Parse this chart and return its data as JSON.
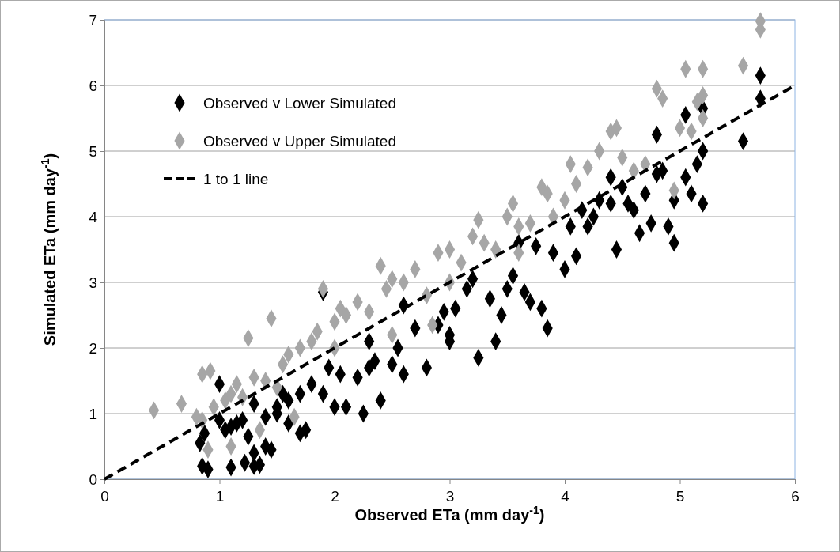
{
  "chart_data": {
    "type": "scatter",
    "xlabel": "Observed ETa (mm day$^{-1}$)",
    "ylabel": "Simulated ETa (mm day$^{-1}$)",
    "xlim": [
      0,
      6
    ],
    "ylim": [
      0,
      7
    ],
    "xticks": [
      0,
      1,
      2,
      3,
      4,
      5,
      6
    ],
    "yticks": [
      0,
      1,
      2,
      3,
      4,
      5,
      6,
      7
    ],
    "grid": "y",
    "legend": "top left",
    "marker": "diamond",
    "series": [
      {
        "name": "Observed v Lower Simulated",
        "color": "#000000",
        "x": [
          0.85,
          0.9,
          1.1,
          1.22,
          1.3,
          1.35,
          0.83,
          0.87,
          1.0,
          1.05,
          1.1,
          1.2,
          1.25,
          1.3,
          1.4,
          1.45,
          1.4,
          1.5,
          1.55,
          1.6,
          1.6,
          1.7,
          1.75,
          1.7,
          1.8,
          1.9,
          1.9,
          2.0,
          2.05,
          2.1,
          2.2,
          2.25,
          2.3,
          2.35,
          2.4,
          2.5,
          2.55,
          2.6,
          2.7,
          2.8,
          2.9,
          2.95,
          3.0,
          3.0,
          3.05,
          3.15,
          3.2,
          3.25,
          3.35,
          3.4,
          3.45,
          3.5,
          3.55,
          3.6,
          3.65,
          3.7,
          3.75,
          3.8,
          3.85,
          3.9,
          4.0,
          4.05,
          4.1,
          4.15,
          4.2,
          4.25,
          4.3,
          4.4,
          4.45,
          4.5,
          4.55,
          4.6,
          4.65,
          4.7,
          4.75,
          4.8,
          4.85,
          4.9,
          4.95,
          4.95,
          5.05,
          5.1,
          5.15,
          5.2,
          5.2,
          5.2,
          5.05,
          5.55,
          5.7,
          5.7,
          4.8,
          4.4,
          2.6,
          2.3,
          1.95,
          1.5,
          1.3,
          1.15,
          1.0
        ],
        "values": [
          0.2,
          0.15,
          0.18,
          0.25,
          0.2,
          0.22,
          0.55,
          0.7,
          1.45,
          0.75,
          0.8,
          0.9,
          0.65,
          0.4,
          0.5,
          0.45,
          0.95,
          1.1,
          1.3,
          1.2,
          0.85,
          0.7,
          0.75,
          1.3,
          1.45,
          2.85,
          1.3,
          1.1,
          1.6,
          1.1,
          1.55,
          1.0,
          1.7,
          1.8,
          1.2,
          1.75,
          2.0,
          1.6,
          2.3,
          1.7,
          2.35,
          2.55,
          2.1,
          2.2,
          2.6,
          2.9,
          3.05,
          1.85,
          2.75,
          2.1,
          2.5,
          2.9,
          3.1,
          3.6,
          2.85,
          2.7,
          3.55,
          2.6,
          2.3,
          3.45,
          3.2,
          3.85,
          3.4,
          4.1,
          3.85,
          4.0,
          4.25,
          4.6,
          3.5,
          4.45,
          4.2,
          4.1,
          3.75,
          4.35,
          3.9,
          5.25,
          4.7,
          3.85,
          3.6,
          4.25,
          4.6,
          4.35,
          4.8,
          5.0,
          4.2,
          5.65,
          5.55,
          5.15,
          6.15,
          5.8,
          4.65,
          4.2,
          2.65,
          2.1,
          1.7,
          1.0,
          1.15,
          0.85,
          0.9
        ]
      },
      {
        "name": "Observed v Upper Simulated",
        "color": "#a6a6a6",
        "x": [
          0.43,
          0.67,
          0.8,
          0.85,
          0.85,
          0.92,
          0.9,
          0.95,
          1.05,
          1.1,
          1.1,
          1.15,
          1.25,
          1.3,
          1.45,
          1.4,
          1.55,
          1.6,
          1.7,
          1.8,
          1.85,
          1.9,
          2.0,
          2.05,
          2.1,
          2.2,
          2.3,
          2.4,
          2.45,
          2.5,
          2.6,
          2.7,
          2.8,
          2.9,
          3.0,
          3.0,
          3.1,
          3.2,
          3.25,
          3.3,
          3.4,
          3.5,
          3.55,
          3.6,
          3.7,
          3.8,
          3.85,
          3.9,
          4.0,
          4.05,
          4.1,
          4.2,
          4.3,
          4.4,
          4.45,
          4.5,
          4.6,
          4.7,
          4.8,
          4.85,
          4.95,
          5.0,
          5.05,
          5.1,
          5.15,
          5.2,
          5.2,
          5.2,
          5.55,
          5.7,
          5.7,
          2.5,
          2.0,
          1.5,
          1.2,
          1.65,
          1.35,
          2.85,
          3.6
        ],
        "values": [
          1.05,
          1.15,
          0.95,
          0.9,
          1.6,
          1.65,
          0.45,
          1.1,
          1.2,
          0.5,
          1.3,
          1.45,
          2.15,
          1.55,
          2.45,
          1.5,
          1.75,
          1.9,
          2.0,
          2.1,
          2.25,
          2.9,
          2.4,
          2.6,
          2.5,
          2.7,
          2.55,
          3.25,
          2.9,
          3.05,
          3.0,
          3.2,
          2.8,
          3.45,
          3.5,
          3.0,
          3.3,
          3.7,
          3.95,
          3.6,
          3.5,
          4.0,
          4.2,
          3.85,
          3.9,
          4.45,
          4.35,
          4.0,
          4.25,
          4.8,
          4.5,
          4.75,
          5.0,
          5.3,
          5.35,
          4.9,
          4.7,
          4.8,
          5.95,
          5.8,
          4.4,
          5.35,
          6.25,
          5.3,
          5.75,
          6.25,
          5.85,
          5.5,
          6.3,
          6.85,
          6.98,
          2.2,
          2.0,
          1.4,
          1.25,
          0.95,
          0.75,
          2.35,
          3.45
        ]
      },
      {
        "name": "1 to 1 line",
        "type": "line",
        "color": "#000000",
        "line_style": "dashed",
        "marker": "none",
        "x": [
          0,
          6
        ],
        "values": [
          0,
          6
        ]
      }
    ]
  }
}
